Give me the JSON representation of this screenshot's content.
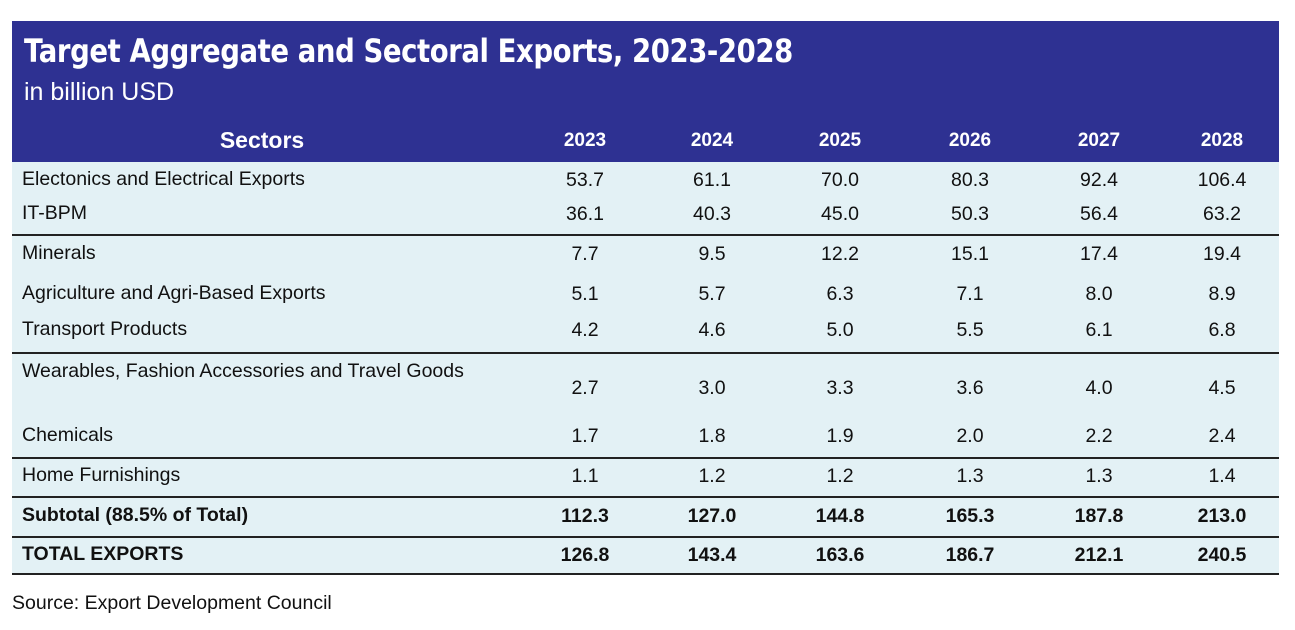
{
  "chart_data": {
    "type": "table",
    "title": "Target Aggregate and Sectoral Exports, 2023-2028",
    "subtitle": "in billion USD",
    "columns": [
      "Sectors",
      "2023",
      "2024",
      "2025",
      "2026",
      "2027",
      "2028"
    ],
    "rows": [
      {
        "sector": "Electonics and Electrical Exports",
        "values": [
          "53.7",
          "61.1",
          "70.0",
          "80.3",
          "92.4",
          "106.4"
        ]
      },
      {
        "sector": "IT-BPM",
        "values": [
          "36.1",
          "40.3",
          "45.0",
          "50.3",
          "56.4",
          "63.2"
        ]
      },
      {
        "sector": "Minerals",
        "values": [
          "7.7",
          "9.5",
          "12.2",
          "15.1",
          "17.4",
          "19.4"
        ]
      },
      {
        "sector": "Agriculture and Agri-Based Exports",
        "values": [
          "5.1",
          "5.7",
          "6.3",
          "7.1",
          "8.0",
          "8.9"
        ]
      },
      {
        "sector": "Transport Products",
        "values": [
          "4.2",
          "4.6",
          "5.0",
          "5.5",
          "6.1",
          "6.8"
        ]
      },
      {
        "sector": "Wearables, Fashion Accessories and Travel Goods",
        "values": [
          "2.7",
          "3.0",
          "3.3",
          "3.6",
          "4.0",
          "4.5"
        ]
      },
      {
        "sector": "Chemicals",
        "values": [
          "1.7",
          "1.8",
          "1.9",
          "2.0",
          "2.2",
          "2.4"
        ]
      },
      {
        "sector": "Home Furnishings",
        "values": [
          "1.1",
          "1.2",
          "1.2",
          "1.3",
          "1.3",
          "1.4"
        ]
      },
      {
        "sector": "Subtotal (88.5% of Total)",
        "values": [
          "112.3",
          "127.0",
          "144.8",
          "165.3",
          "187.8",
          "213.0"
        ],
        "bold": true
      },
      {
        "sector": "TOTAL EXPORTS",
        "values": [
          "126.8",
          "143.4",
          "163.6",
          "186.7",
          "212.1",
          "240.5"
        ],
        "bold": true
      }
    ],
    "colors": {
      "header": "#2e3192",
      "body": "#e3f1f5"
    }
  },
  "source": "Source:  Export Development Council"
}
